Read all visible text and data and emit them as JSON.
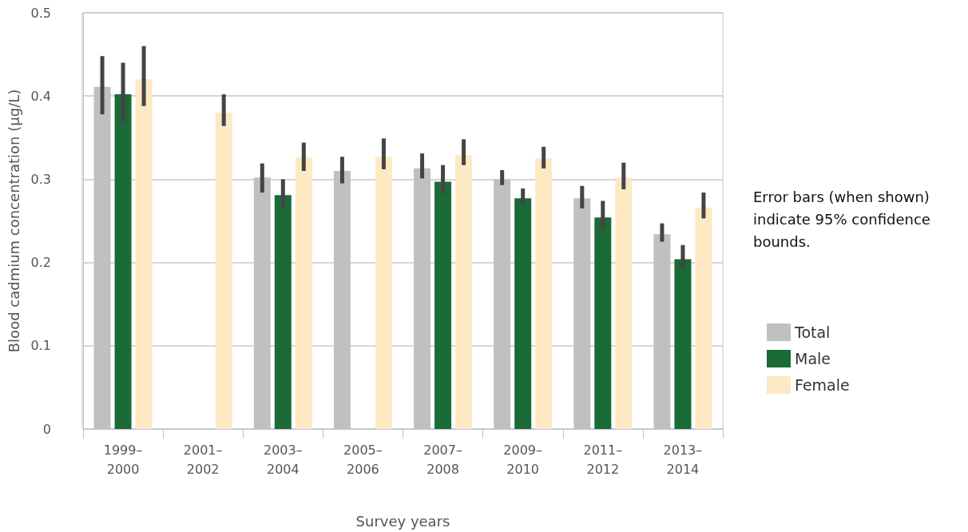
{
  "chart_data": {
    "type": "bar",
    "xlabel": "Survey years",
    "ylabel": "Blood cadmium concentration (µg/L)",
    "categories": [
      "1999–2000",
      "2001–2002",
      "2003–2004",
      "2005–2006",
      "2007–2008",
      "2009–2010",
      "2011–2012",
      "2013–2014"
    ],
    "series": [
      {
        "name": "Total",
        "color": "#c0c0c0",
        "values": [
          0.411,
          null,
          0.302,
          0.31,
          0.313,
          0.3,
          0.277,
          0.234
        ],
        "errors": [
          [
            0.378,
            0.448
          ],
          null,
          [
            0.284,
            0.319
          ],
          [
            0.295,
            0.327
          ],
          [
            0.301,
            0.331
          ],
          [
            0.293,
            0.311
          ],
          [
            0.265,
            0.292
          ],
          [
            0.225,
            0.247
          ]
        ]
      },
      {
        "name": "Male",
        "color": "#1a6b35",
        "values": [
          0.402,
          null,
          0.281,
          null,
          0.297,
          0.277,
          0.254,
          0.204
        ],
        "errors": [
          [
            0.369,
            0.44
          ],
          null,
          [
            0.266,
            0.3
          ],
          null,
          [
            0.283,
            0.317
          ],
          [
            0.269,
            0.289
          ],
          [
            0.238,
            0.274
          ],
          [
            0.193,
            0.221
          ]
        ]
      },
      {
        "name": "Female",
        "color": "#fde9c4",
        "values": [
          0.42,
          0.38,
          0.326,
          0.327,
          0.329,
          0.325,
          0.302,
          0.266
        ],
        "errors": [
          [
            0.388,
            0.46
          ],
          [
            0.364,
            0.402
          ],
          [
            0.31,
            0.344
          ],
          [
            0.312,
            0.349
          ],
          [
            0.317,
            0.348
          ],
          [
            0.313,
            0.339
          ],
          [
            0.288,
            0.32
          ],
          [
            0.253,
            0.284
          ]
        ]
      }
    ],
    "ylim": [
      0,
      0.5
    ],
    "yticks": [
      0,
      0.1,
      0.2,
      0.3,
      0.4,
      0.5
    ],
    "grid": "y",
    "legend": "right",
    "annotations": [
      "Error bars (when shown) indicate 95% confidence bounds."
    ]
  }
}
